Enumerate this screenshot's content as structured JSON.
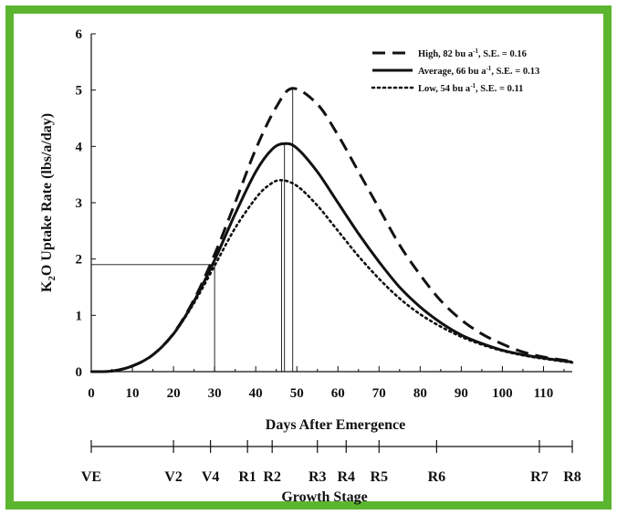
{
  "chart_data": {
    "type": "line",
    "title": "",
    "xlabel": "Days After Emergence",
    "ylabel_parts": [
      "K",
      "2",
      "O Uptake Rate (lbs/a/day)"
    ],
    "xlim": [
      0,
      117
    ],
    "ylim": [
      0,
      6
    ],
    "xticks": [
      "0",
      "10",
      "20",
      "30",
      "40",
      "50",
      "60",
      "70",
      "80",
      "90",
      "100",
      "110"
    ],
    "yticks": [
      "0",
      "1",
      "2",
      "3",
      "4",
      "5",
      "6"
    ],
    "grid": false,
    "legend_position": "top-right",
    "series": [
      {
        "name_parts": [
          "High, 82 bu a",
          "-1",
          ", S.E. = 0.16"
        ],
        "style": "dashed",
        "x": [
          0,
          5,
          10,
          15,
          20,
          25,
          30,
          35,
          40,
          45,
          49,
          55,
          60,
          65,
          70,
          75,
          80,
          85,
          90,
          95,
          100,
          105,
          110,
          117
        ],
        "y": [
          0,
          0.01,
          0.1,
          0.3,
          0.68,
          1.28,
          2.08,
          3.0,
          3.95,
          4.7,
          5.03,
          4.75,
          4.2,
          3.55,
          2.9,
          2.25,
          1.72,
          1.26,
          0.92,
          0.67,
          0.49,
          0.35,
          0.26,
          0.18
        ]
      },
      {
        "name_parts": [
          "Average, 66 bu a",
          "-1",
          ", S.E. = 0.13"
        ],
        "style": "solid",
        "x": [
          0,
          5,
          10,
          15,
          20,
          25,
          30,
          35,
          40,
          44,
          47,
          50,
          55,
          60,
          65,
          70,
          75,
          80,
          85,
          90,
          95,
          100,
          105,
          110,
          117
        ],
        "y": [
          0,
          0.01,
          0.1,
          0.3,
          0.67,
          1.25,
          1.98,
          2.8,
          3.55,
          3.95,
          4.05,
          3.97,
          3.55,
          3.0,
          2.45,
          1.95,
          1.5,
          1.15,
          0.87,
          0.65,
          0.5,
          0.38,
          0.3,
          0.24,
          0.17
        ]
      },
      {
        "name_parts": [
          "Low, 54 bu a",
          "-1",
          ", S.E. = 0.11"
        ],
        "style": "dotted",
        "x": [
          0,
          5,
          10,
          15,
          20,
          25,
          30,
          35,
          40,
          43,
          46,
          50,
          55,
          60,
          65,
          70,
          75,
          80,
          85,
          90,
          95,
          100,
          105,
          110,
          117
        ],
        "y": [
          0,
          0.01,
          0.1,
          0.3,
          0.67,
          1.22,
          1.88,
          2.55,
          3.08,
          3.3,
          3.4,
          3.3,
          2.95,
          2.5,
          2.05,
          1.65,
          1.3,
          1.02,
          0.8,
          0.62,
          0.48,
          0.37,
          0.29,
          0.23,
          0.16
        ]
      }
    ],
    "reference_lines": {
      "hline_y": 1.9,
      "hline_x_end": 30,
      "vlines": [
        {
          "x": 30,
          "y_top": 1.9
        },
        {
          "x": 46.3,
          "y_top": 3.4
        },
        {
          "x": 47,
          "y_top": 4.05
        },
        {
          "x": 49,
          "y_top": 5.03
        }
      ]
    },
    "stage_axis": {
      "title": "Growth Stage",
      "stages": [
        {
          "label": "VE",
          "day": 0
        },
        {
          "label": "V2",
          "day": 20
        },
        {
          "label": "V4",
          "day": 29
        },
        {
          "label": "R1",
          "day": 38
        },
        {
          "label": "R2",
          "day": 44
        },
        {
          "label": "R3",
          "day": 55
        },
        {
          "label": "R4",
          "day": 62
        },
        {
          "label": "R5",
          "day": 70
        },
        {
          "label": "R6",
          "day": 84
        },
        {
          "label": "R7",
          "day": 109
        },
        {
          "label": "R8",
          "day": 117
        }
      ]
    }
  }
}
